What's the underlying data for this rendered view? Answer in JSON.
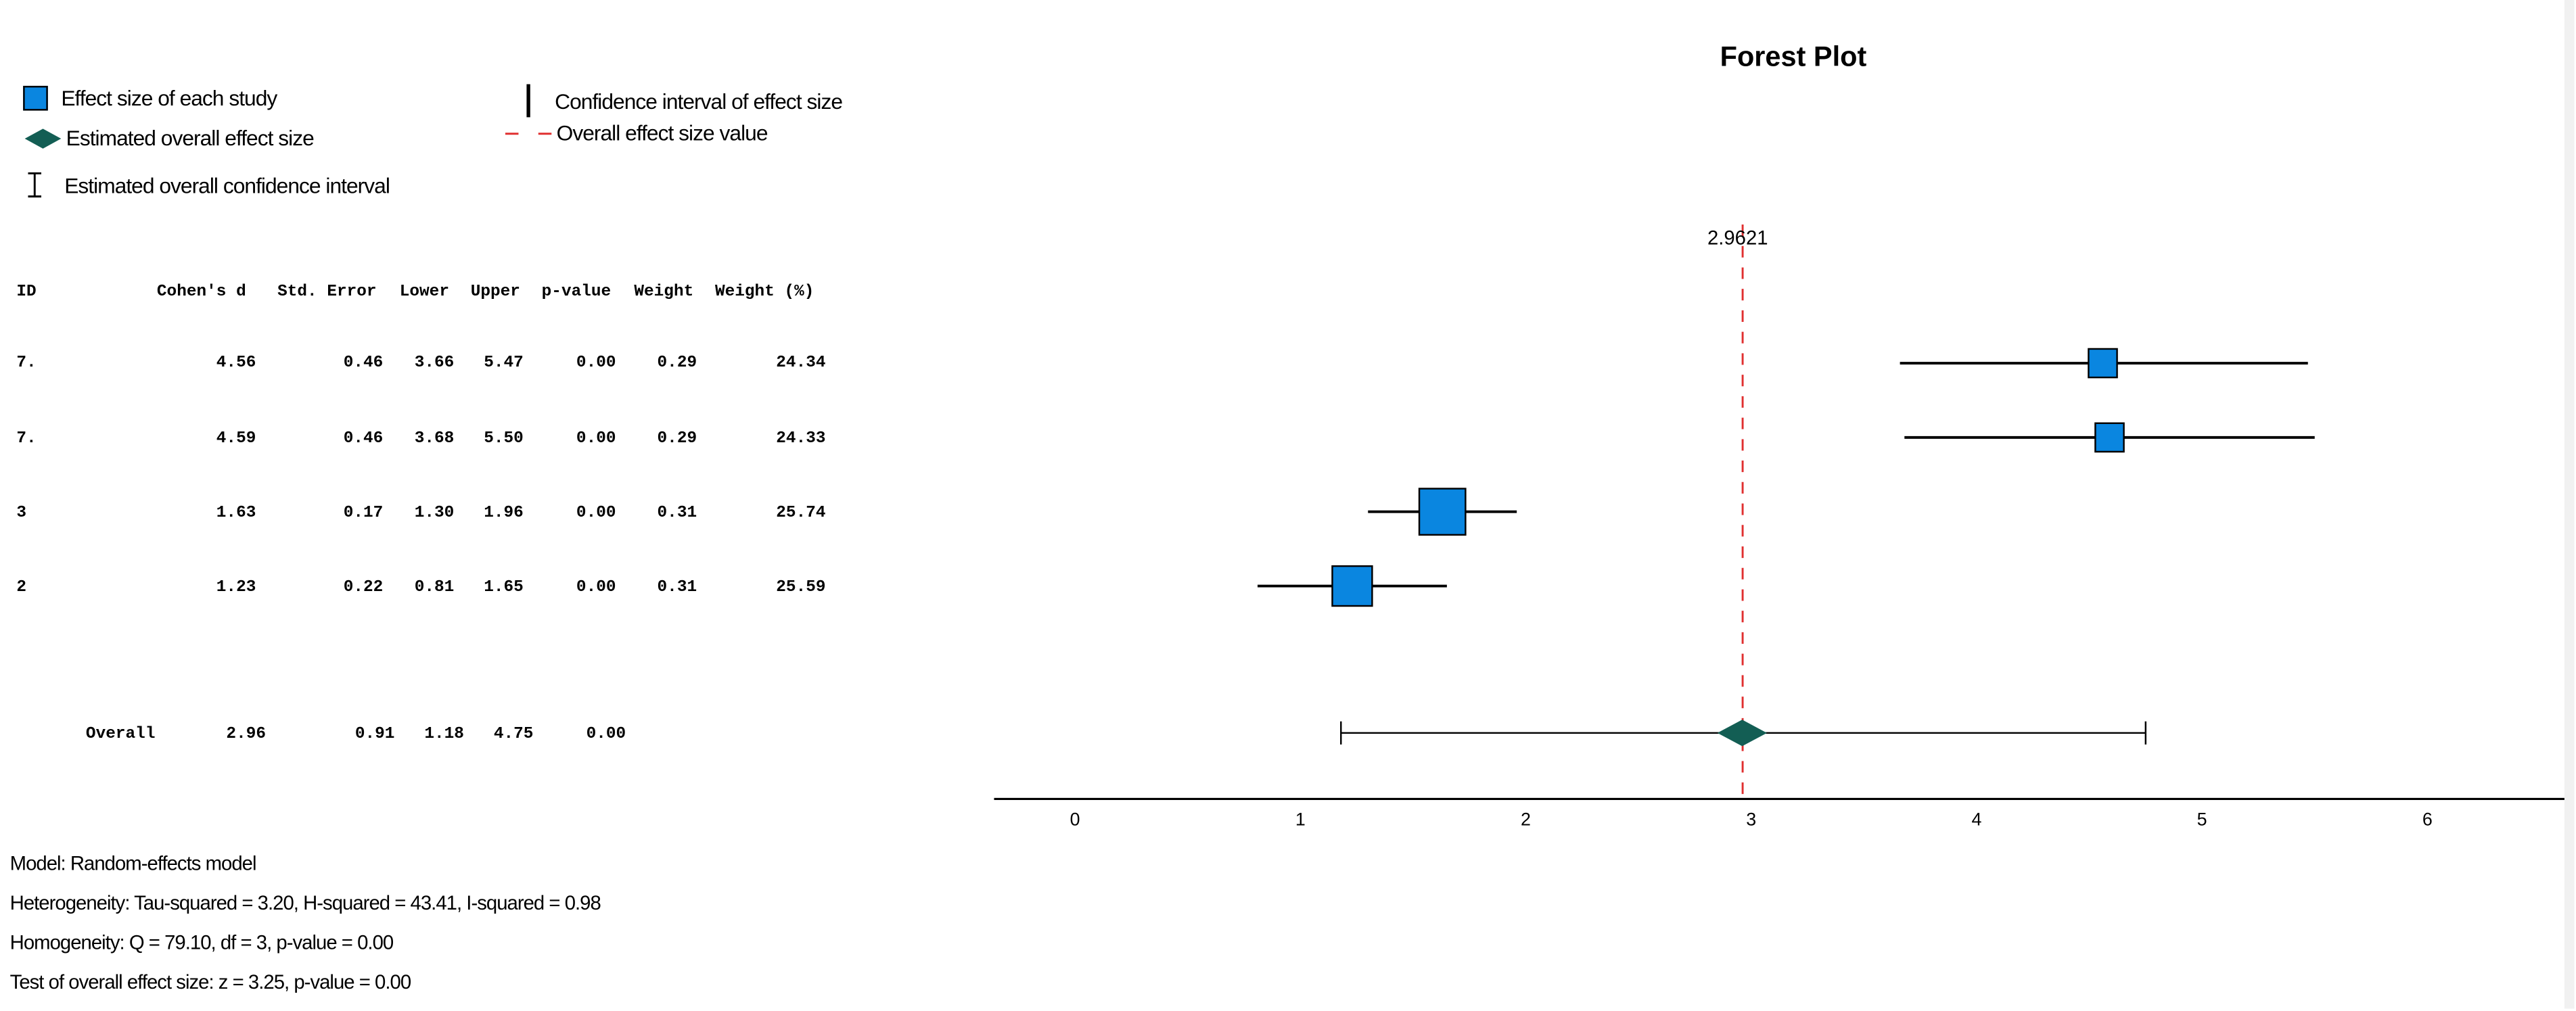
{
  "legend": {
    "study_effect": "Effect size of each study",
    "overall_effect": "Estimated overall effect size",
    "overall_ci": "Estimated overall confidence interval",
    "ci": "Confidence interval of effect size",
    "overall_line": "Overall effect size value"
  },
  "table": {
    "headers": [
      "ID",
      "Cohen's d",
      "Std. Error",
      "Lower",
      "Upper",
      "p-value",
      "Weight",
      "Weight (%)"
    ],
    "rows": [
      [
        "7.",
        "4.56",
        "0.46",
        "3.66",
        "5.47",
        "0.00",
        "0.29",
        "24.34"
      ],
      [
        "7.",
        "4.59",
        "0.46",
        "3.68",
        "5.50",
        "0.00",
        "0.29",
        "24.33"
      ],
      [
        "3",
        "1.63",
        "0.17",
        "1.30",
        "1.96",
        "0.00",
        "0.31",
        "25.74"
      ],
      [
        "2",
        "1.23",
        "0.22",
        "0.81",
        "1.65",
        "0.00",
        "0.31",
        "25.59"
      ]
    ],
    "overall": [
      "Overall",
      "2.96",
      "0.91",
      "1.18",
      "4.75",
      "0.00"
    ]
  },
  "notes": [
    "Model: Random-effects model",
    "Heterogeneity: Tau-squared = 3.20, H-squared = 43.41, I-squared = 0.98",
    "Homogeneity: Q = 79.10, df = 3, p-value = 0.00",
    "Test of overall effect size: z = 3.25, p-value = 0.00"
  ],
  "colors": {
    "study": "#0a86e0",
    "diamond": "#135e54",
    "ref_line": "#e03030"
  },
  "chart_data": {
    "type": "forest",
    "title": "Forest Plot",
    "xlim": [
      -0.2,
      6.6
    ],
    "ticks": [
      0,
      1,
      2,
      3,
      4,
      5,
      6
    ],
    "studies": [
      {
        "effect": 4.56,
        "lower": 3.66,
        "upper": 5.47,
        "weight_pct": 24.34
      },
      {
        "effect": 4.59,
        "lower": 3.68,
        "upper": 5.5,
        "weight_pct": 24.33
      },
      {
        "effect": 1.63,
        "lower": 1.3,
        "upper": 1.96,
        "weight_pct": 25.74
      },
      {
        "effect": 1.23,
        "lower": 0.81,
        "upper": 1.65,
        "weight_pct": 25.59
      }
    ],
    "overall": {
      "effect": 2.96,
      "lower": 1.18,
      "upper": 4.75
    },
    "ref_value": 2.9621,
    "ref_label": "2.9621"
  }
}
